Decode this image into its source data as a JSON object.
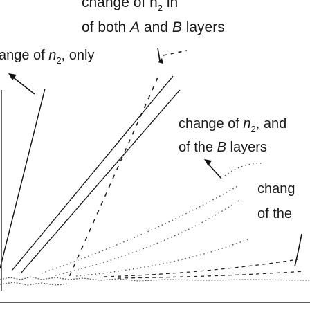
{
  "header": {
    "line1_prefix": "change of n",
    "line1_sub": "2",
    "line1_suffix": "in",
    "line2_prefix": "of both",
    "line2_a": "A",
    "line2_and": "and",
    "line2_b": "B",
    "line2_suffix": "layers"
  },
  "label_left": {
    "prefix": "ange of",
    "var": "n",
    "sub": "2",
    "suffix": ", only"
  },
  "label_right": {
    "prefix": "change of",
    "var": "n",
    "sub": "2",
    "suffix": ", and",
    "line2_prefix": "of the",
    "line2_b": "B",
    "line2_suffix": "layers"
  },
  "label_lower": {
    "line1": "chang",
    "line2": "of the"
  },
  "colors": {
    "text": "#1a1a1a",
    "dashed": "#222222",
    "dotted": "#555555",
    "arrow": "#111111",
    "axis": "#444444"
  }
}
